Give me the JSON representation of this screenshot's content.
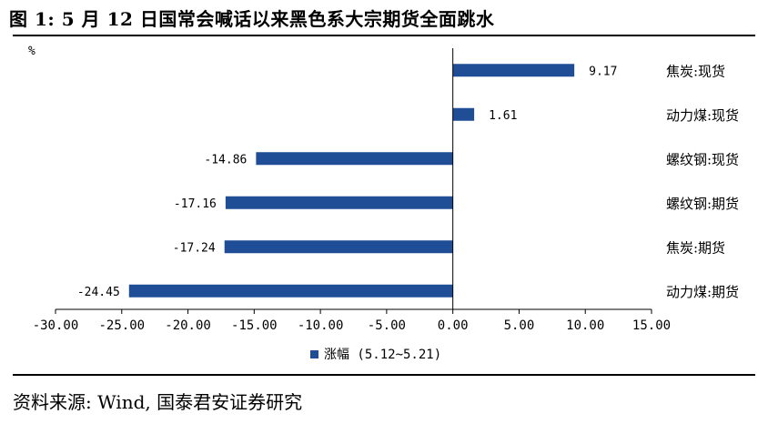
{
  "figure_title": "图 1: 5 月 12 日国常会喊话以来黑色系大宗期货全面跳水",
  "source_note": "资料来源: Wind, 国泰君安证券研究",
  "chart_data": {
    "type": "bar",
    "orientation": "horizontal",
    "ylabel": "%",
    "categories": [
      "焦炭:现货",
      "动力煤:现货",
      "螺纹钢:现货",
      "螺纹钢:期货",
      "焦炭:期货",
      "动力煤:期货"
    ],
    "series": [
      {
        "name": "涨幅 (5.12~5.21)",
        "values": [
          9.17,
          1.61,
          -14.86,
          -17.16,
          -17.24,
          -24.45
        ],
        "value_labels": [
          "9.17",
          "1.61",
          "-14.86",
          "-17.16",
          "-17.24",
          "-24.45"
        ]
      }
    ],
    "xlim": [
      -30,
      15
    ],
    "xticks": [
      -30,
      -25,
      -20,
      -15,
      -10,
      -5,
      0,
      5,
      10,
      15
    ],
    "xtick_labels": [
      "-30.00",
      "-25.00",
      "-20.00",
      "-15.00",
      "-10.00",
      "-5.00",
      "0.00",
      "5.00",
      "10.00",
      "15.00"
    ],
    "grid": false,
    "legend_position": "bottom",
    "bar_color": "#1f4e96"
  }
}
